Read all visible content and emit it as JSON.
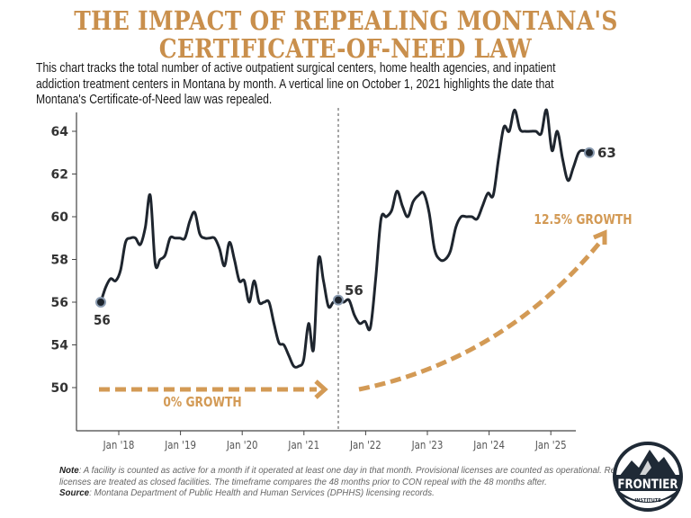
{
  "title_lines": [
    "THE IMPACT OF REPEALING MONTANA'S",
    "CERTIFICATE-OF-NEED LAW"
  ],
  "description_lines": [
    "This chart tracks the total number of active outpatient surgical centers, home health agencies, and inpatient",
    "addiction treatment centers in Montana by month. A vertical line on October 1, 2021 highlights the date that",
    "Montana's Certificate-of-Need law was repealed."
  ],
  "chart_data": {
    "type": "line",
    "x_frequency": "monthly",
    "x_start": "2017-10",
    "x_tick_labels": [
      "Jan '18",
      "Jan '19",
      "Jan '20",
      "Jan '21",
      "Jan '22",
      "Jan '23",
      "Jan '24",
      "Jan '25"
    ],
    "y_tick_labels": [
      "64",
      "62",
      "60",
      "58",
      "56",
      "54",
      "50"
    ],
    "ylim": [
      52,
      65
    ],
    "grid": false,
    "reference_line": {
      "date": "2021-10-01",
      "style": "dotted"
    },
    "series": [
      {
        "values": [
          56,
          56.7,
          57.1,
          57,
          57.5,
          58.8,
          59,
          59,
          58.7,
          59.5,
          61,
          57.8,
          58,
          58.2,
          59,
          59,
          59,
          59,
          59.8,
          60.2,
          59.2,
          59,
          59,
          59,
          58.5,
          57.7,
          58.8,
          58,
          57,
          57,
          56,
          57,
          56,
          56,
          56,
          55,
          54.1,
          54,
          53.5,
          53,
          53,
          53.3,
          55,
          53.8,
          58,
          57,
          55.8,
          56,
          56.1,
          56,
          56.1,
          55.4,
          55,
          55.1,
          54.8,
          57.1,
          59.9,
          60,
          60.3,
          61.2,
          60.5,
          60,
          60.7,
          61,
          61.1,
          60.2,
          58.5,
          58,
          58,
          58.4,
          59.5,
          60,
          60,
          60,
          59.9,
          60.5,
          61.1,
          61,
          62.7,
          64.2,
          64,
          65,
          64.1,
          64,
          64,
          64,
          63.9,
          65,
          63.1,
          64,
          62.7,
          61.7,
          62.3,
          63,
          63.1,
          63
        ],
        "color": "#1e252e"
      }
    ],
    "annotations": {
      "start_label": "56",
      "repeal_label": "56",
      "end_label": "63",
      "pre_growth": "0% GROWTH",
      "post_growth": "12.5% GROWTH"
    },
    "accent_color": "#d39a55"
  },
  "note": {
    "note_label": "Note",
    "note_text": ": A facility is counted as active for a month if it operated at least one day in that month. Provisional licenses are counted as operational. Revoked licenses are treated as closed facilities. The timeframe compares the 48 months prior to CON repeal with the 48 months after.",
    "source_label": "Source",
    "source_text": ": Montana Department of Public Health and Human Services (DPHHS) licensing records."
  },
  "logo": {
    "name": "FRONTIER",
    "sub": "INSTITUTE"
  }
}
